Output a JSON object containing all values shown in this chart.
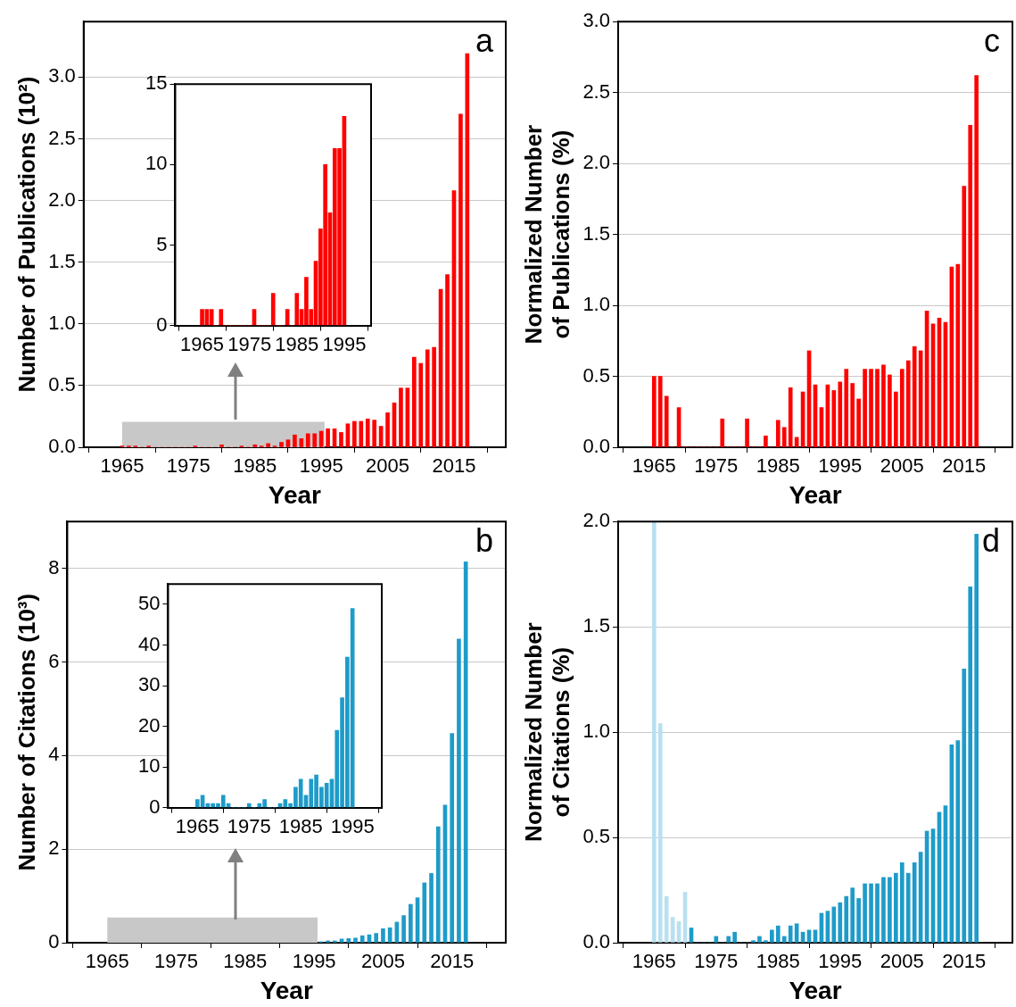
{
  "chart_data": [
    {
      "type": "bar",
      "xlabel": "Year",
      "ylabel": "Number of Publications (10²)",
      "annotations": [
        "a"
      ],
      "grid": "y",
      "x": [
        1965,
        1966,
        1967,
        1968,
        1969,
        1970,
        1971,
        1972,
        1973,
        1974,
        1975,
        1976,
        1977,
        1978,
        1979,
        1980,
        1981,
        1982,
        1983,
        1984,
        1985,
        1986,
        1987,
        1988,
        1989,
        1990,
        1991,
        1992,
        1993,
        1994,
        1995,
        1996,
        1997,
        1998,
        1999,
        2000,
        2001,
        2002,
        2003,
        2004,
        2005,
        2006,
        2007,
        2008,
        2009,
        2010,
        2011,
        2012,
        2013,
        2014,
        2015,
        2016,
        2017
      ],
      "values": [
        0.01,
        0.01,
        0.01,
        0,
        0.01,
        0,
        0,
        0,
        0,
        0,
        0,
        0.01,
        0,
        0,
        0,
        0.02,
        0,
        0,
        0.01,
        0,
        0.02,
        0.01,
        0.03,
        0.01,
        0.04,
        0.06,
        0.1,
        0.07,
        0.11,
        0.11,
        0.13,
        0.15,
        0.15,
        0.12,
        0.19,
        0.21,
        0.21,
        0.23,
        0.22,
        0.17,
        0.28,
        0.36,
        0.48,
        0.48,
        0.73,
        0.68,
        0.79,
        0.81,
        1.28,
        1.4,
        2.08,
        2.7,
        3.19
      ],
      "color": "#ff0000",
      "xlim": [
        1964.5,
        2017.5
      ],
      "xticks": [
        1965,
        1975,
        1985,
        1995,
        2005,
        2015
      ],
      "ylim": [
        0,
        3.45
      ],
      "yticks": [
        {
          "value": 0,
          "label": "0.0"
        },
        {
          "value": 0.5,
          "label": "0.5"
        },
        {
          "value": 1,
          "label": "1.0"
        },
        {
          "value": 1.5,
          "label": "1.5"
        },
        {
          "value": 2,
          "label": "2.0"
        },
        {
          "value": 2.5,
          "label": "2.5"
        },
        {
          "value": 3,
          "label": "3.0"
        }
      ],
      "bands": [
        {
          "axis": "x",
          "from": 1965,
          "to": 1995.5,
          "color": "#c8c8c8"
        }
      ]
    },
    {
      "type": "bar",
      "x": [
        1965,
        1966,
        1967,
        1968,
        1969,
        1970,
        1971,
        1972,
        1973,
        1974,
        1975,
        1976,
        1977,
        1978,
        1979,
        1980,
        1981,
        1982,
        1983,
        1984,
        1985,
        1986,
        1987,
        1988,
        1989,
        1990,
        1991,
        1992,
        1993,
        1994,
        1995
      ],
      "values": [
        1,
        1,
        1,
        0,
        1,
        0,
        0,
        0,
        0,
        0,
        0,
        1,
        0,
        0,
        0,
        2,
        0,
        0,
        1,
        0,
        2,
        1,
        3,
        1,
        4,
        6,
        10,
        7,
        11,
        11,
        13
      ],
      "color": "#ff0000",
      "xlim": [
        1964.5,
        1995.5
      ],
      "xticks": [
        1965,
        1975,
        1985,
        1995
      ],
      "ylim": [
        0,
        15
      ],
      "yticks": [
        0,
        5,
        10,
        15
      ]
    },
    {
      "type": "bar",
      "xlabel": "Year",
      "ylabel": "Normalized Number\nof Publications (%)",
      "annotations": [
        "c"
      ],
      "grid": "y",
      "x": [
        1965,
        1966,
        1967,
        1968,
        1969,
        1970,
        1971,
        1972,
        1973,
        1974,
        1975,
        1976,
        1977,
        1978,
        1979,
        1980,
        1981,
        1982,
        1983,
        1984,
        1985,
        1986,
        1987,
        1988,
        1989,
        1990,
        1991,
        1992,
        1993,
        1994,
        1995,
        1996,
        1997,
        1998,
        1999,
        2000,
        2001,
        2002,
        2003,
        2004,
        2005,
        2006,
        2007,
        2008,
        2009,
        2010,
        2011,
        2012,
        2013,
        2014,
        2015,
        2016,
        2017
      ],
      "values": [
        0.5,
        0.5,
        0.36,
        0,
        0.28,
        0,
        0,
        0,
        0,
        0,
        0,
        0.2,
        0,
        0,
        0,
        0.2,
        0,
        0,
        0.08,
        0,
        0.19,
        0.14,
        0.42,
        0.07,
        0.39,
        0.68,
        0.44,
        0.28,
        0.44,
        0.4,
        0.46,
        0.55,
        0.45,
        0.34,
        0.55,
        0.55,
        0.55,
        0.58,
        0.51,
        0.39,
        0.55,
        0.61,
        0.71,
        0.68,
        0.96,
        0.87,
        0.91,
        0.88,
        1.27,
        1.29,
        1.84,
        2.27,
        2.62
      ],
      "color": "#ff0000",
      "xlim": [
        1964.5,
        2017.5
      ],
      "xticks": [
        1965,
        1975,
        1985,
        1995,
        2005,
        2015
      ],
      "ylim": [
        0,
        3
      ],
      "yticks": [
        {
          "value": 0,
          "label": "0.0"
        },
        {
          "value": 0.5,
          "label": "0.5"
        },
        {
          "value": 1,
          "label": "1.0"
        },
        {
          "value": 1.5,
          "label": "1.5"
        },
        {
          "value": 2,
          "label": "2.0"
        },
        {
          "value": 2.5,
          "label": "2.5"
        },
        {
          "value": 3,
          "label": "3.0"
        }
      ]
    },
    {
      "type": "bar",
      "xlabel": "Year",
      "ylabel": "Number of Citations (10³)",
      "annotations": [
        "b"
      ],
      "grid": "y",
      "x": [
        1996,
        1997,
        1998,
        1999,
        2000,
        2001,
        2002,
        2003,
        2004,
        2005,
        2006,
        2007,
        2008,
        2009,
        2010,
        2011,
        2012,
        2013,
        2014,
        2015,
        2016,
        2017
      ],
      "values": [
        0.02,
        0.04,
        0.04,
        0.08,
        0.09,
        0.1,
        0.15,
        0.17,
        0.2,
        0.3,
        0.32,
        0.44,
        0.58,
        0.82,
        0.96,
        1.28,
        1.48,
        2.48,
        2.94,
        4.47,
        6.49,
        8.14
      ],
      "color": "#1e9bc9",
      "xlim": [
        1964.5,
        2017.5
      ],
      "xticks": [
        1965,
        1975,
        1985,
        1995,
        2005,
        2015
      ],
      "ylim": [
        0,
        9
      ],
      "yticks": [
        0,
        2,
        4,
        6,
        8
      ],
      "bands": [
        {
          "axis": "x",
          "from": 1965,
          "to": 1995.5,
          "color": "#c8c8c8"
        }
      ]
    },
    {
      "type": "bar",
      "x": [
        1965,
        1966,
        1967,
        1968,
        1969,
        1970,
        1971,
        1972,
        1973,
        1974,
        1975,
        1976,
        1977,
        1978,
        1979,
        1980,
        1981,
        1982,
        1983,
        1984,
        1985,
        1986,
        1987,
        1988,
        1989,
        1990,
        1991,
        1992,
        1993,
        1994,
        1995
      ],
      "values": [
        2,
        3,
        1,
        1,
        1,
        3,
        1,
        0,
        0,
        0,
        1,
        0,
        1,
        2,
        0,
        0,
        1,
        2,
        1,
        5,
        7,
        3,
        7,
        8,
        5,
        6,
        7,
        19,
        27,
        37,
        49
      ],
      "color": "#1e9bc9",
      "xlim": [
        1964.5,
        1995.5
      ],
      "xticks": [
        1965,
        1975,
        1985,
        1995
      ],
      "ylim": [
        0,
        55
      ],
      "yticks": [
        0,
        10,
        20,
        30,
        40,
        50
      ]
    },
    {
      "type": "bar",
      "xlabel": "Year",
      "ylabel": "Normalized Number\nof Citations (%)",
      "annotations": [
        "d"
      ],
      "grid": "y",
      "x": [
        1965,
        1966,
        1967,
        1968,
        1969,
        1970,
        1971,
        1972,
        1973,
        1974,
        1975,
        1976,
        1977,
        1978,
        1979,
        1980,
        1981,
        1982,
        1983,
        1984,
        1985,
        1986,
        1987,
        1988,
        1989,
        1990,
        1991,
        1992,
        1993,
        1994,
        1995,
        1996,
        1997,
        1998,
        1999,
        2000,
        2001,
        2002,
        2003,
        2004,
        2005,
        2006,
        2007,
        2008,
        2009,
        2010,
        2011,
        2012,
        2013,
        2014,
        2015,
        2016,
        2017
      ],
      "values": [
        2.0,
        1.04,
        0.22,
        0.12,
        0.1,
        0.24,
        0.07,
        0,
        0,
        0,
        0.03,
        0,
        0.03,
        0.05,
        0,
        0,
        0.01,
        0.03,
        0.01,
        0.06,
        0.08,
        0.03,
        0.08,
        0.09,
        0.05,
        0.06,
        0.06,
        0.14,
        0.15,
        0.17,
        0.19,
        0.22,
        0.26,
        0.21,
        0.28,
        0.28,
        0.28,
        0.31,
        0.31,
        0.33,
        0.38,
        0.33,
        0.38,
        0.43,
        0.53,
        0.54,
        0.62,
        0.65,
        0.94,
        0.96,
        1.3,
        1.69,
        1.94
      ],
      "colors": [
        "#b9e0f0",
        "#b9e0f0",
        "#b9e0f0",
        "#b9e0f0",
        "#b9e0f0",
        "#b9e0f0",
        "#1e9bc9",
        "#1e9bc9",
        "#1e9bc9",
        "#1e9bc9",
        "#1e9bc9",
        "#1e9bc9",
        "#1e9bc9",
        "#1e9bc9",
        "#1e9bc9",
        "#1e9bc9",
        "#1e9bc9",
        "#1e9bc9",
        "#1e9bc9",
        "#1e9bc9",
        "#1e9bc9",
        "#1e9bc9",
        "#1e9bc9",
        "#1e9bc9",
        "#1e9bc9",
        "#1e9bc9",
        "#1e9bc9",
        "#1e9bc9",
        "#1e9bc9",
        "#1e9bc9",
        "#1e9bc9",
        "#1e9bc9",
        "#1e9bc9",
        "#1e9bc9",
        "#1e9bc9",
        "#1e9bc9",
        "#1e9bc9",
        "#1e9bc9",
        "#1e9bc9",
        "#1e9bc9",
        "#1e9bc9",
        "#1e9bc9",
        "#1e9bc9",
        "#1e9bc9",
        "#1e9bc9",
        "#1e9bc9",
        "#1e9bc9",
        "#1e9bc9",
        "#1e9bc9",
        "#1e9bc9",
        "#1e9bc9",
        "#1e9bc9",
        "#1e9bc9"
      ],
      "xlim": [
        1964.5,
        2017.5
      ],
      "xticks": [
        1965,
        1975,
        1985,
        1995,
        2005,
        2015
      ],
      "ylim": [
        0,
        2
      ],
      "yticks": [
        {
          "value": 0,
          "label": "0.0"
        },
        {
          "value": 0.5,
          "label": "0.5"
        },
        {
          "value": 1,
          "label": "1.0"
        },
        {
          "value": 1.5,
          "label": "1.5"
        },
        {
          "value": 2,
          "label": "2.0"
        }
      ]
    }
  ]
}
